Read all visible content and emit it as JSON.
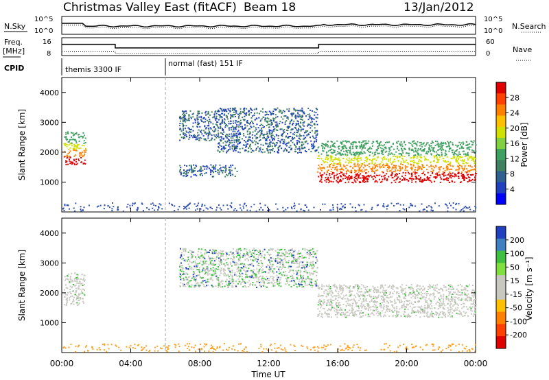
{
  "header": {
    "station": "Christmas Valley East (fitACF)",
    "beam": "Beam 18",
    "date": "13/Jan/2012"
  },
  "top_panels": {
    "nsky_label": "N.Sky",
    "nsky_ticks": [
      "10^5",
      "10^0"
    ],
    "nsearch_label": "N.Search",
    "nsearch_ticks": [
      "10^5",
      "10^0"
    ],
    "freq_label": "Freq.",
    "freq_unit": "[MHz]",
    "freq_ticks": [
      "16",
      "8"
    ],
    "nave_label": "Nave",
    "nave_ticks": [
      "60",
      "0"
    ],
    "cpid_label": "CPID",
    "cpid_modes": [
      {
        "label": "themis 3300 IF",
        "start_hour": 0,
        "end_hour": 6
      },
      {
        "label": "normal (fast) 151 IF",
        "start_hour": 6,
        "end_hour": 24
      }
    ],
    "freq_series": {
      "hours": [
        0,
        3.1,
        3.1,
        14.9,
        14.9,
        24
      ],
      "mhz": [
        13.5,
        13.5,
        11.5,
        11.5,
        13.5,
        13.5
      ]
    },
    "nave_series": {
      "hours": [
        0,
        3.1,
        3.1,
        14.9,
        14.9,
        24
      ],
      "count": [
        15,
        15,
        8,
        8,
        15,
        15
      ]
    }
  },
  "chart_data": [
    {
      "type": "heatmap",
      "name": "power-panel",
      "ylabel": "Slant Range [km]",
      "xlabel": "Time UT",
      "x_range_hours": [
        0,
        24
      ],
      "ylim": [
        0,
        4500
      ],
      "yticks": [
        "1000",
        "2000",
        "3000",
        "4000"
      ],
      "xticks": [
        "00:00",
        "04:00",
        "08:00",
        "12:00",
        "16:00",
        "20:00",
        "00:00"
      ],
      "colorbar": {
        "label": "Power [dB]",
        "ticks": [
          "28",
          "24",
          "20",
          "16",
          "12",
          "8",
          "4"
        ],
        "colors": [
          "#e00000",
          "#ff4000",
          "#ff8000",
          "#ffc000",
          "#d0e000",
          "#80d040",
          "#40a060",
          "#408060",
          "#306090",
          "#2040c0",
          "#0000ff"
        ]
      },
      "regions": [
        {
          "from_hour": 0.1,
          "to_hour": 1.4,
          "range_km": [
            1600,
            2700
          ],
          "level": "high"
        },
        {
          "from_hour": 6.8,
          "to_hour": 9.0,
          "range_km": [
            2400,
            3400
          ],
          "level": "low"
        },
        {
          "from_hour": 9.0,
          "to_hour": 14.8,
          "range_km": [
            2000,
            3500
          ],
          "level": "low"
        },
        {
          "from_hour": 6.8,
          "to_hour": 10.2,
          "range_km": [
            1200,
            1600
          ],
          "level": "low"
        },
        {
          "from_hour": 14.8,
          "to_hour": 24,
          "range_km": [
            1000,
            2400
          ],
          "level": "high"
        }
      ]
    },
    {
      "type": "heatmap",
      "name": "velocity-panel",
      "ylabel": "Slant Range [km]",
      "xlabel": "Time UT",
      "x_range_hours": [
        0,
        24
      ],
      "ylim": [
        0,
        4500
      ],
      "yticks": [
        "1000",
        "2000",
        "3000",
        "4000"
      ],
      "xticks": [
        "00:00",
        "04:00",
        "08:00",
        "12:00",
        "16:00",
        "20:00",
        "00:00"
      ],
      "colorbar": {
        "label": "Velocity [m s⁻¹]",
        "ticks": [
          "200",
          "100",
          "50",
          "15",
          "-15",
          "-50",
          "-100",
          "-200"
        ],
        "colors": [
          "#2040c0",
          "#4080c0",
          "#40c040",
          "#80e040",
          "#c8c8c0",
          "#c8c8c0",
          "#ffc000",
          "#ff8000",
          "#ff4000",
          "#e00000"
        ]
      },
      "regions": [
        {
          "from_hour": 0.1,
          "to_hour": 1.3,
          "range_km": [
            1600,
            2700
          ],
          "level": "ground"
        },
        {
          "from_hour": 6.8,
          "to_hour": 14.8,
          "range_km": [
            2200,
            3500
          ],
          "level": "mixed"
        },
        {
          "from_hour": 14.8,
          "to_hour": 24,
          "range_km": [
            1200,
            2300
          ],
          "level": "ground"
        }
      ]
    }
  ]
}
